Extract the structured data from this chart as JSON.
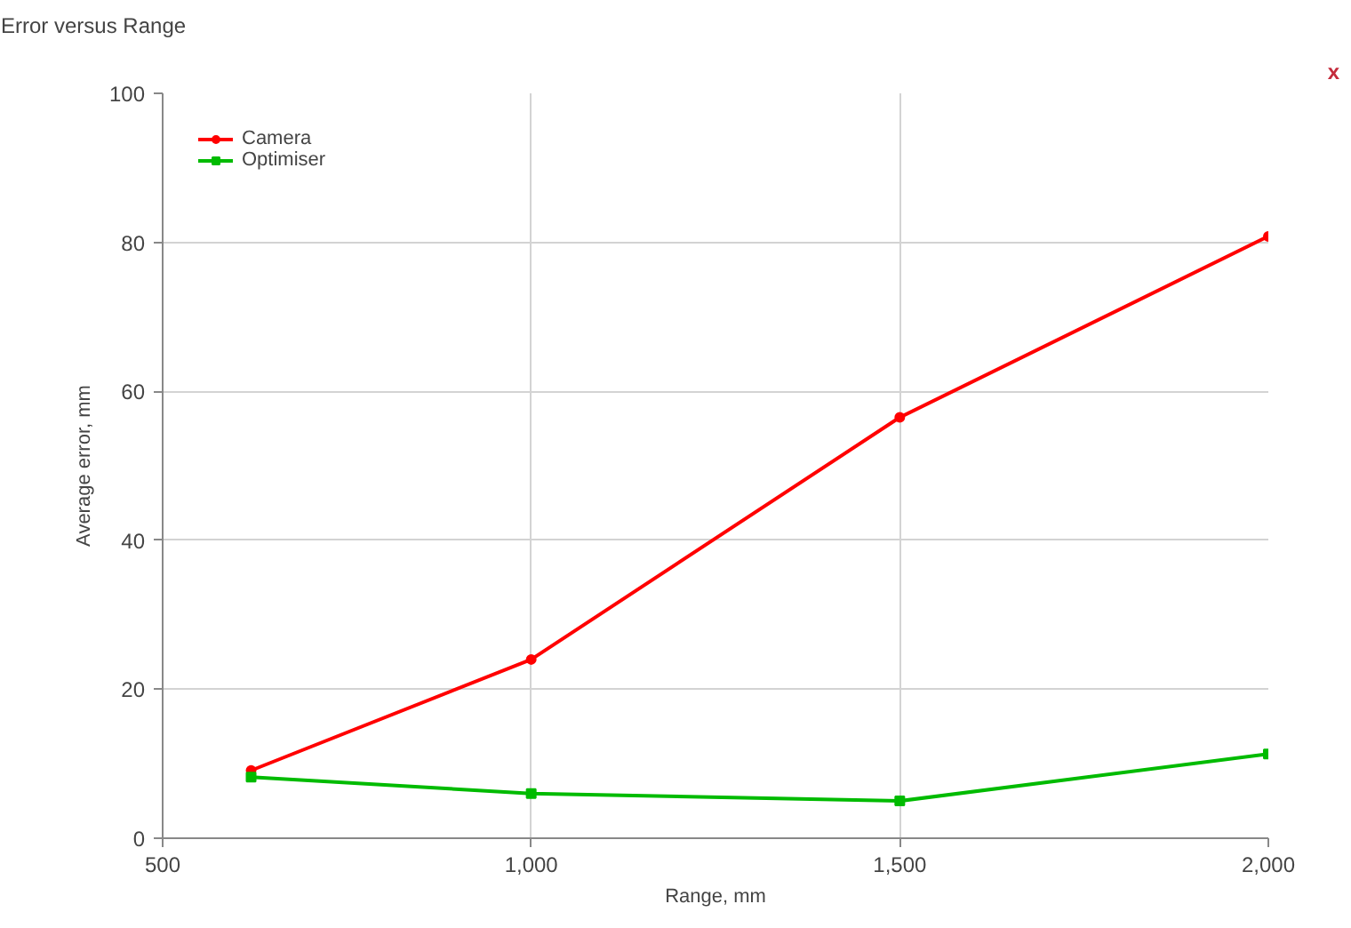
{
  "chart_data": {
    "type": "line",
    "title": "Error versus Range",
    "xlabel": "Range, mm",
    "ylabel": "Average error, mm",
    "x": [
      620,
      1000,
      1500,
      2000
    ],
    "series": [
      {
        "name": "Camera",
        "color": "#ff0000",
        "values": [
          9.1,
          24.0,
          56.5,
          80.8
        ],
        "marker": "circle"
      },
      {
        "name": "Optimiser",
        "color": "#00bb00",
        "values": [
          8.2,
          6.0,
          5.0,
          11.3
        ],
        "marker": "square"
      }
    ],
    "xlim": [
      500,
      2000
    ],
    "xticks": [
      500,
      {
        "value": 1000,
        "label": "1,000"
      },
      {
        "value": 1500,
        "label": "1,500"
      },
      {
        "value": 2000,
        "label": "2,000"
      }
    ],
    "ylim": [
      0,
      100
    ],
    "yticks": [
      0,
      20,
      40,
      60,
      80,
      100
    ],
    "grid": true,
    "legend": "top left",
    "line_style": "solid",
    "annotations": [
      "x"
    ]
  }
}
